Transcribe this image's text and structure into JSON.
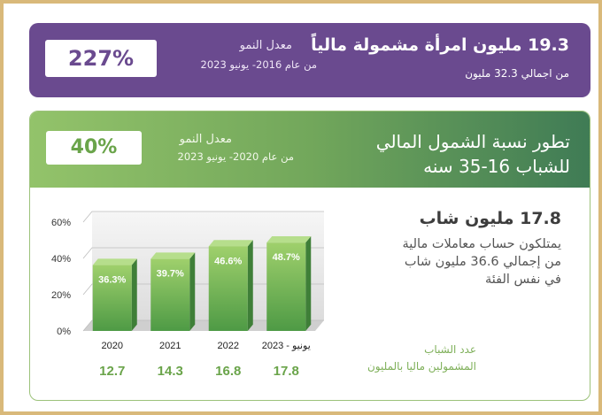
{
  "women": {
    "headline": "19.3 مليون امرأة مشمولة مالياً",
    "subline": "من اجمالي 32.3 مليون",
    "growth_label": "معدل النمو",
    "growth_period": "من عام 2016- يونيو 2023",
    "growth_value": "227%"
  },
  "youth": {
    "title_line1": "تطور نسبة الشمول المالي",
    "title_line2": "للشباب 16-35 سنه",
    "growth_label": "معدل النمو",
    "growth_period": "من عام 2020- يونيو 2023",
    "growth_value": "40%",
    "stat_headline": "17.8 مليون شاب",
    "stat_body": "يمتلكون حساب معاملات مالية من إجمالي 36.6 مليون شاب في نفس الفئة",
    "legend_line1": "عدد الشباب",
    "legend_line2": "المشمولين ماليا بالمليون"
  },
  "colors": {
    "purple": "#6a4a8f",
    "green_accent": "#6aa44a",
    "bar_light": "#9fd06c",
    "bar_dark": "#4e9a45"
  },
  "chart_data": {
    "type": "bar",
    "categories": [
      "2020",
      "2021",
      "2022",
      "2023 - يونيو"
    ],
    "values": [
      36.3,
      39.7,
      46.6,
      48.7
    ],
    "value_labels": [
      "36.3%",
      "39.7%",
      "46.6%",
      "48.7%"
    ],
    "counts_millions": [
      "12.7",
      "14.3",
      "16.8",
      "17.8"
    ],
    "yticks": [
      "0%",
      "20%",
      "40%",
      "60%"
    ],
    "ylim": [
      0,
      60
    ],
    "grid": true
  }
}
